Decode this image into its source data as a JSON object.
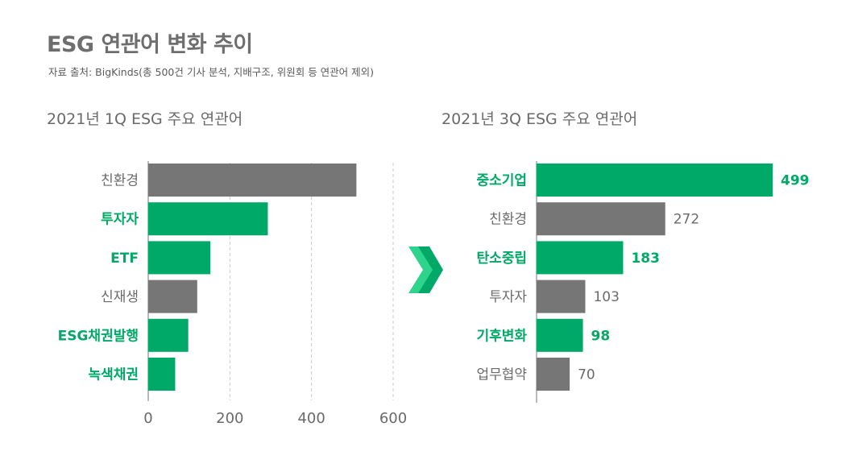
{
  "title": "ESG 연관어 변화 추이",
  "source": "자료 출처: BigKinds(총 500건 기사 분석, 지배구조, 위원회 등 연관어 제외)",
  "colors": {
    "green": "#00a968",
    "gray": "#767676",
    "label_gray": "#6b6b6b",
    "arrow_light": "#2ed38c",
    "arrow_dark": "#00a968"
  },
  "chart_data": [
    {
      "type": "bar",
      "orientation": "horizontal",
      "title": "2021년 1Q ESG 주요 연관어",
      "categories": [
        "친환경",
        "투자자",
        "ETF",
        "신재생",
        "ESG채권발행",
        "녹색채권"
      ],
      "values": [
        510,
        293,
        152,
        120,
        98,
        66
      ],
      "highlight": [
        false,
        true,
        true,
        false,
        true,
        true
      ],
      "xlim": [
        0,
        600
      ],
      "xticks": [
        0,
        200,
        400,
        600
      ],
      "grid": "vertical dashed"
    },
    {
      "type": "bar",
      "orientation": "horizontal",
      "title": "2021년 3Q ESG 주요 연관어",
      "categories": [
        "중소기업",
        "친환경",
        "탄소중립",
        "투자자",
        "기후변화",
        "업무협약"
      ],
      "values": [
        499,
        272,
        183,
        103,
        98,
        70
      ],
      "value_labels": [
        "499",
        "272",
        "183",
        "103",
        "98",
        "70"
      ],
      "highlight": [
        true,
        false,
        true,
        false,
        true,
        false
      ],
      "grid": "none"
    }
  ]
}
